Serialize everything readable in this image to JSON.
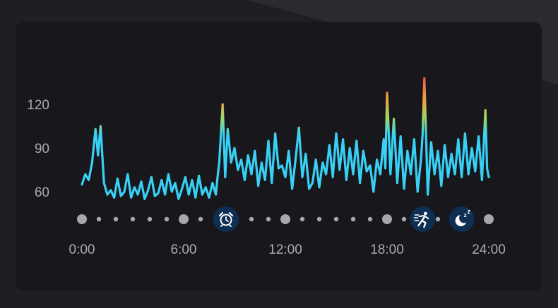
{
  "chart_data": {
    "type": "line",
    "title": "",
    "xlabel": "",
    "ylabel": "",
    "x_tick_labels": [
      "0:00",
      "6:00",
      "12:00",
      "18:00",
      "24:00"
    ],
    "x_tick_hours": [
      0,
      6,
      12,
      18,
      24
    ],
    "y_ticks": [
      60,
      90,
      120
    ],
    "xlim": [
      0,
      24
    ],
    "ylim": [
      50,
      140
    ],
    "grid": false,
    "legend": "none",
    "series": [
      {
        "color_low": "#38d0f5",
        "color_high": "#f0364f",
        "x": [
          0.0,
          0.2,
          0.4,
          0.6,
          0.8,
          0.95,
          1.1,
          1.3,
          1.5,
          1.7,
          1.9,
          2.1,
          2.3,
          2.5,
          2.7,
          2.9,
          3.1,
          3.3,
          3.5,
          3.7,
          3.9,
          4.1,
          4.3,
          4.5,
          4.7,
          4.9,
          5.1,
          5.3,
          5.5,
          5.7,
          5.9,
          6.1,
          6.3,
          6.5,
          6.7,
          6.9,
          7.1,
          7.3,
          7.5,
          7.7,
          7.9,
          8.0,
          8.1,
          8.2,
          8.3,
          8.45,
          8.6,
          8.8,
          9.0,
          9.2,
          9.4,
          9.6,
          9.8,
          10.0,
          10.2,
          10.4,
          10.6,
          10.8,
          11.0,
          11.2,
          11.4,
          11.6,
          11.8,
          12.0,
          12.2,
          12.4,
          12.6,
          12.8,
          13.0,
          13.2,
          13.4,
          13.6,
          13.8,
          14.0,
          14.2,
          14.4,
          14.6,
          14.8,
          15.0,
          15.2,
          15.4,
          15.6,
          15.8,
          16.0,
          16.2,
          16.4,
          16.6,
          16.8,
          17.0,
          17.2,
          17.4,
          17.6,
          17.8,
          17.9,
          18.0,
          18.2,
          18.4,
          18.6,
          18.8,
          19.0,
          19.2,
          19.4,
          19.6,
          19.8,
          20.0,
          20.1,
          20.2,
          20.4,
          20.6,
          20.8,
          21.0,
          21.2,
          21.4,
          21.6,
          21.8,
          22.0,
          22.2,
          22.4,
          22.6,
          22.8,
          23.0,
          23.2,
          23.4,
          23.6,
          23.8,
          23.9,
          24.0
        ],
        "y": [
          65,
          72,
          68,
          80,
          103,
          85,
          105,
          66,
          58,
          61,
          56,
          69,
          57,
          60,
          72,
          56,
          63,
          58,
          67,
          55,
          61,
          70,
          57,
          59,
          68,
          58,
          72,
          60,
          66,
          55,
          62,
          70,
          58,
          68,
          56,
          71,
          58,
          63,
          56,
          66,
          58,
          70,
          80,
          100,
          120,
          70,
          103,
          80,
          90,
          75,
          82,
          68,
          85,
          72,
          88,
          64,
          80,
          68,
          95,
          66,
          100,
          76,
          78,
          70,
          88,
          62,
          82,
          104,
          70,
          86,
          62,
          66,
          82,
          63,
          80,
          72,
          92,
          70,
          100,
          75,
          96,
          68,
          90,
          72,
          95,
          66,
          88,
          74,
          78,
          60,
          82,
          72,
          96,
          76,
          128,
          72,
          110,
          66,
          98,
          62,
          88,
          72,
          96,
          60,
          82,
          100,
          138,
          58,
          94,
          72,
          88,
          64,
          92,
          70,
          86,
          72,
          96,
          70,
          100,
          72,
          90,
          74,
          98,
          68,
          116,
          76,
          70
        ]
      }
    ],
    "markers": [
      {
        "hour": 8.5,
        "icon": "alarm-clock-icon"
      },
      {
        "hour": 20.1,
        "icon": "running-person-icon"
      },
      {
        "hour": 22.4,
        "icon": "moon-sleep-icon"
      }
    ],
    "timeline_dots": [
      {
        "hour": 0,
        "size": "large"
      },
      {
        "hour": 1,
        "size": "small"
      },
      {
        "hour": 2,
        "size": "small"
      },
      {
        "hour": 3,
        "size": "small"
      },
      {
        "hour": 4,
        "size": "small"
      },
      {
        "hour": 5,
        "size": "small"
      },
      {
        "hour": 6,
        "size": "large"
      },
      {
        "hour": 7,
        "size": "small"
      },
      {
        "hour": 10,
        "size": "small"
      },
      {
        "hour": 11,
        "size": "small"
      },
      {
        "hour": 12,
        "size": "large"
      },
      {
        "hour": 13,
        "size": "small"
      },
      {
        "hour": 14,
        "size": "small"
      },
      {
        "hour": 15,
        "size": "small"
      },
      {
        "hour": 16,
        "size": "small"
      },
      {
        "hour": 17,
        "size": "small"
      },
      {
        "hour": 18,
        "size": "large"
      },
      {
        "hour": 19,
        "size": "small"
      },
      {
        "hour": 21,
        "size": "small"
      },
      {
        "hour": 24,
        "size": "large"
      }
    ]
  }
}
